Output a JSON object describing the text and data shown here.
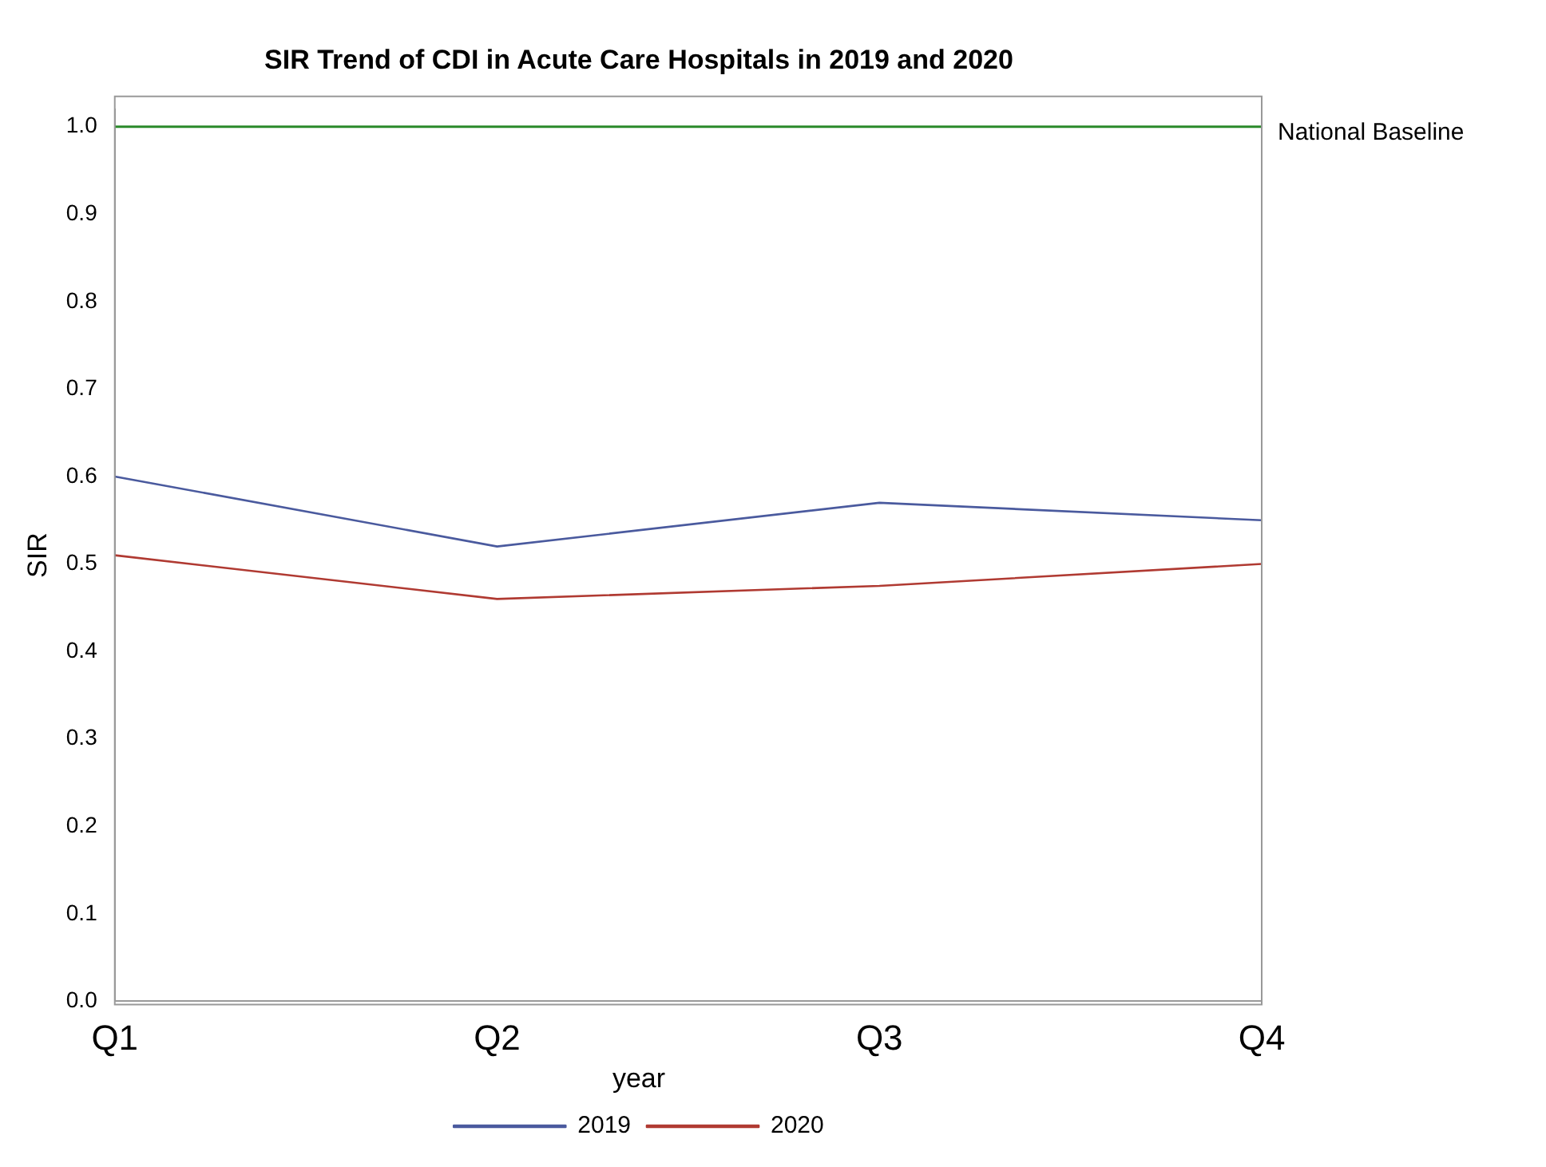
{
  "chart_data": {
    "type": "line",
    "title": "SIR Trend of CDI in Acute Care Hospitals in 2019 and 2020",
    "ylabel": "SIR",
    "legend_title": "year",
    "categories": [
      "Q1",
      "Q2",
      "Q3",
      "Q4"
    ],
    "series": [
      {
        "name": "2019",
        "color": "#4a5a9e",
        "values": [
          0.6,
          0.52,
          0.57,
          0.55
        ]
      },
      {
        "name": "2020",
        "color": "#b03a32",
        "values": [
          0.51,
          0.46,
          0.475,
          0.5
        ]
      }
    ],
    "ylim": [
      0,
      1.02
    ],
    "yticks": [
      {
        "value": 0,
        "label": "0.0"
      },
      {
        "value": 0.1,
        "label": "0.1"
      },
      {
        "value": 0.2,
        "label": "0.2"
      },
      {
        "value": 0.3,
        "label": "0.3"
      },
      {
        "value": 0.4,
        "label": "0.4"
      },
      {
        "value": 0.5,
        "label": "0.5"
      },
      {
        "value": 0.6,
        "label": "0.6"
      },
      {
        "value": 0.7,
        "label": "0.7"
      },
      {
        "value": 0.8,
        "label": "0.8"
      },
      {
        "value": 0.9,
        "label": "0.9"
      },
      {
        "value": 1,
        "label": "1.0"
      }
    ],
    "ref_lines": [
      {
        "axis": "y",
        "value": 1,
        "label": "National Baseline",
        "color": "#2a8a2a"
      }
    ],
    "grid": false,
    "legend": "bottom",
    "marker": "none",
    "line_style": "solid"
  }
}
